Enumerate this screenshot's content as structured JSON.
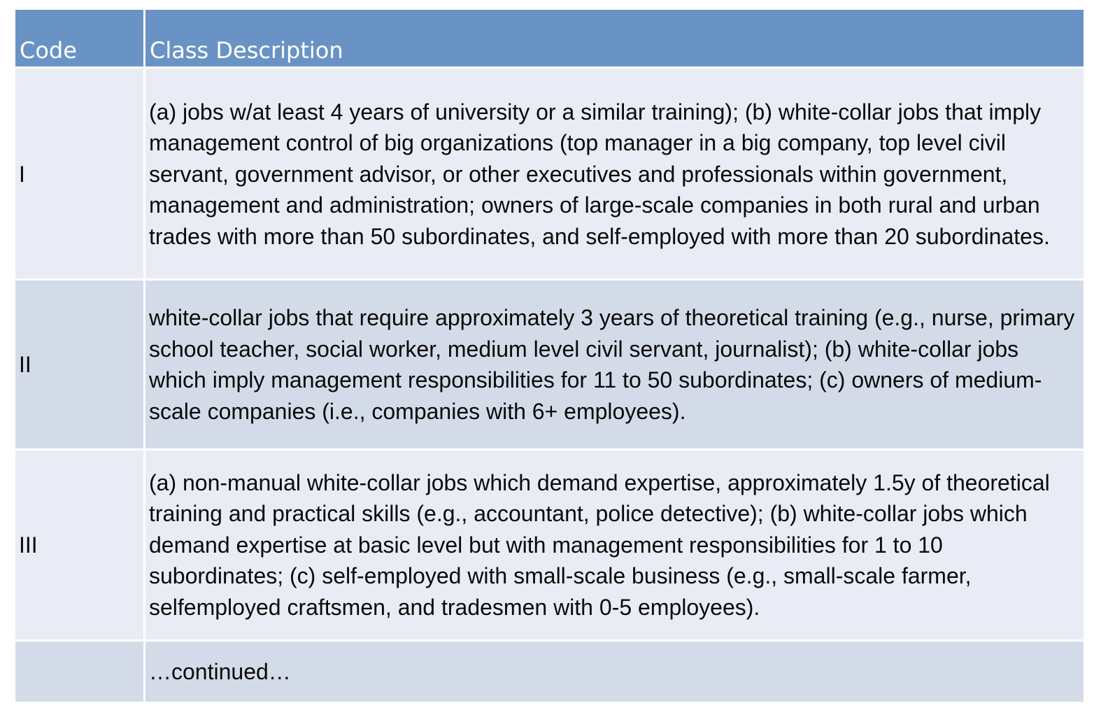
{
  "table": {
    "headers": {
      "code": "Code",
      "description": "Class Description"
    },
    "rows": [
      {
        "code": "I",
        "description": "(a) jobs w/at least 4 years of university or a similar training); (b) white-collar jobs that imply management control of big organizations (top manager in a big company, top level civil servant, government advisor, or other executives and professionals within government, management and administration; owners of large-scale companies in both rural and urban trades with more than 50 subordinates, and self-employed with more than 20 subordinates."
      },
      {
        "code": "II",
        "description": "white-collar jobs that require approximately 3 years of theoretical training (e.g., nurse, primary school teacher, social worker, medium level civil servant, journalist); (b) white-collar jobs which imply management responsibilities for 11 to 50 subordinates; (c) owners of medium-scale companies (i.e., companies with 6+ employees)."
      },
      {
        "code": "III",
        "description": "(a) non-manual white-collar jobs which demand expertise, approximately 1.5y of theoretical training and practical skills (e.g., accountant, police detective); (b) white-collar jobs which demand expertise at basic level but with management responsibilities for 1 to 10 subordinates; (c) self-employed with small-scale business (e.g., small-scale farmer, selfemployed craftsmen, and tradesmen with 0-5 employees)."
      },
      {
        "code": "",
        "description": "…continued…"
      }
    ]
  },
  "colors": {
    "header_bg": "#6a93c5",
    "row_light": "#e9ecf4",
    "row_dark": "#d4dbe8",
    "text": "#0a0a0a"
  }
}
